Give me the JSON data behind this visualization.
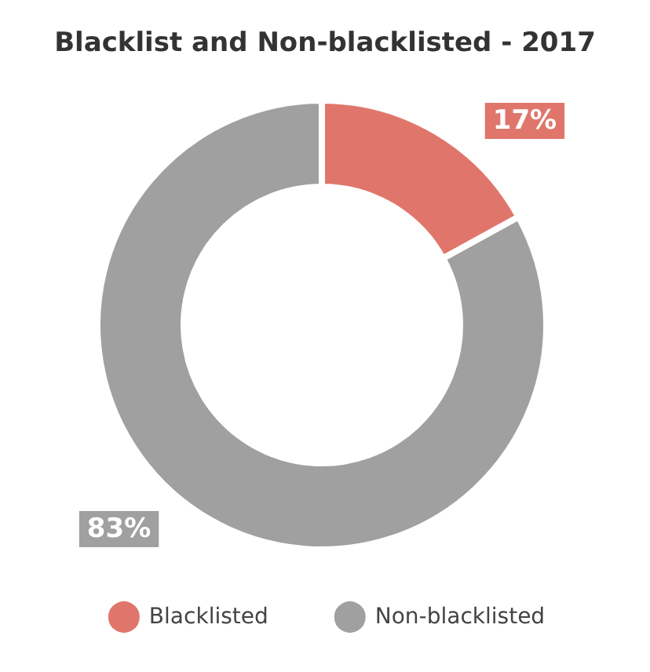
{
  "chart_data": {
    "type": "donut",
    "title": "Blacklist and Non-blacklisted - 2017",
    "categories": [
      "Blacklisted",
      "Non-blacklisted"
    ],
    "values": [
      17,
      83
    ],
    "value_labels": [
      "17%",
      "83%"
    ],
    "colors": [
      "#e0766b",
      "#a0a0a0"
    ],
    "legend": "bottom"
  }
}
